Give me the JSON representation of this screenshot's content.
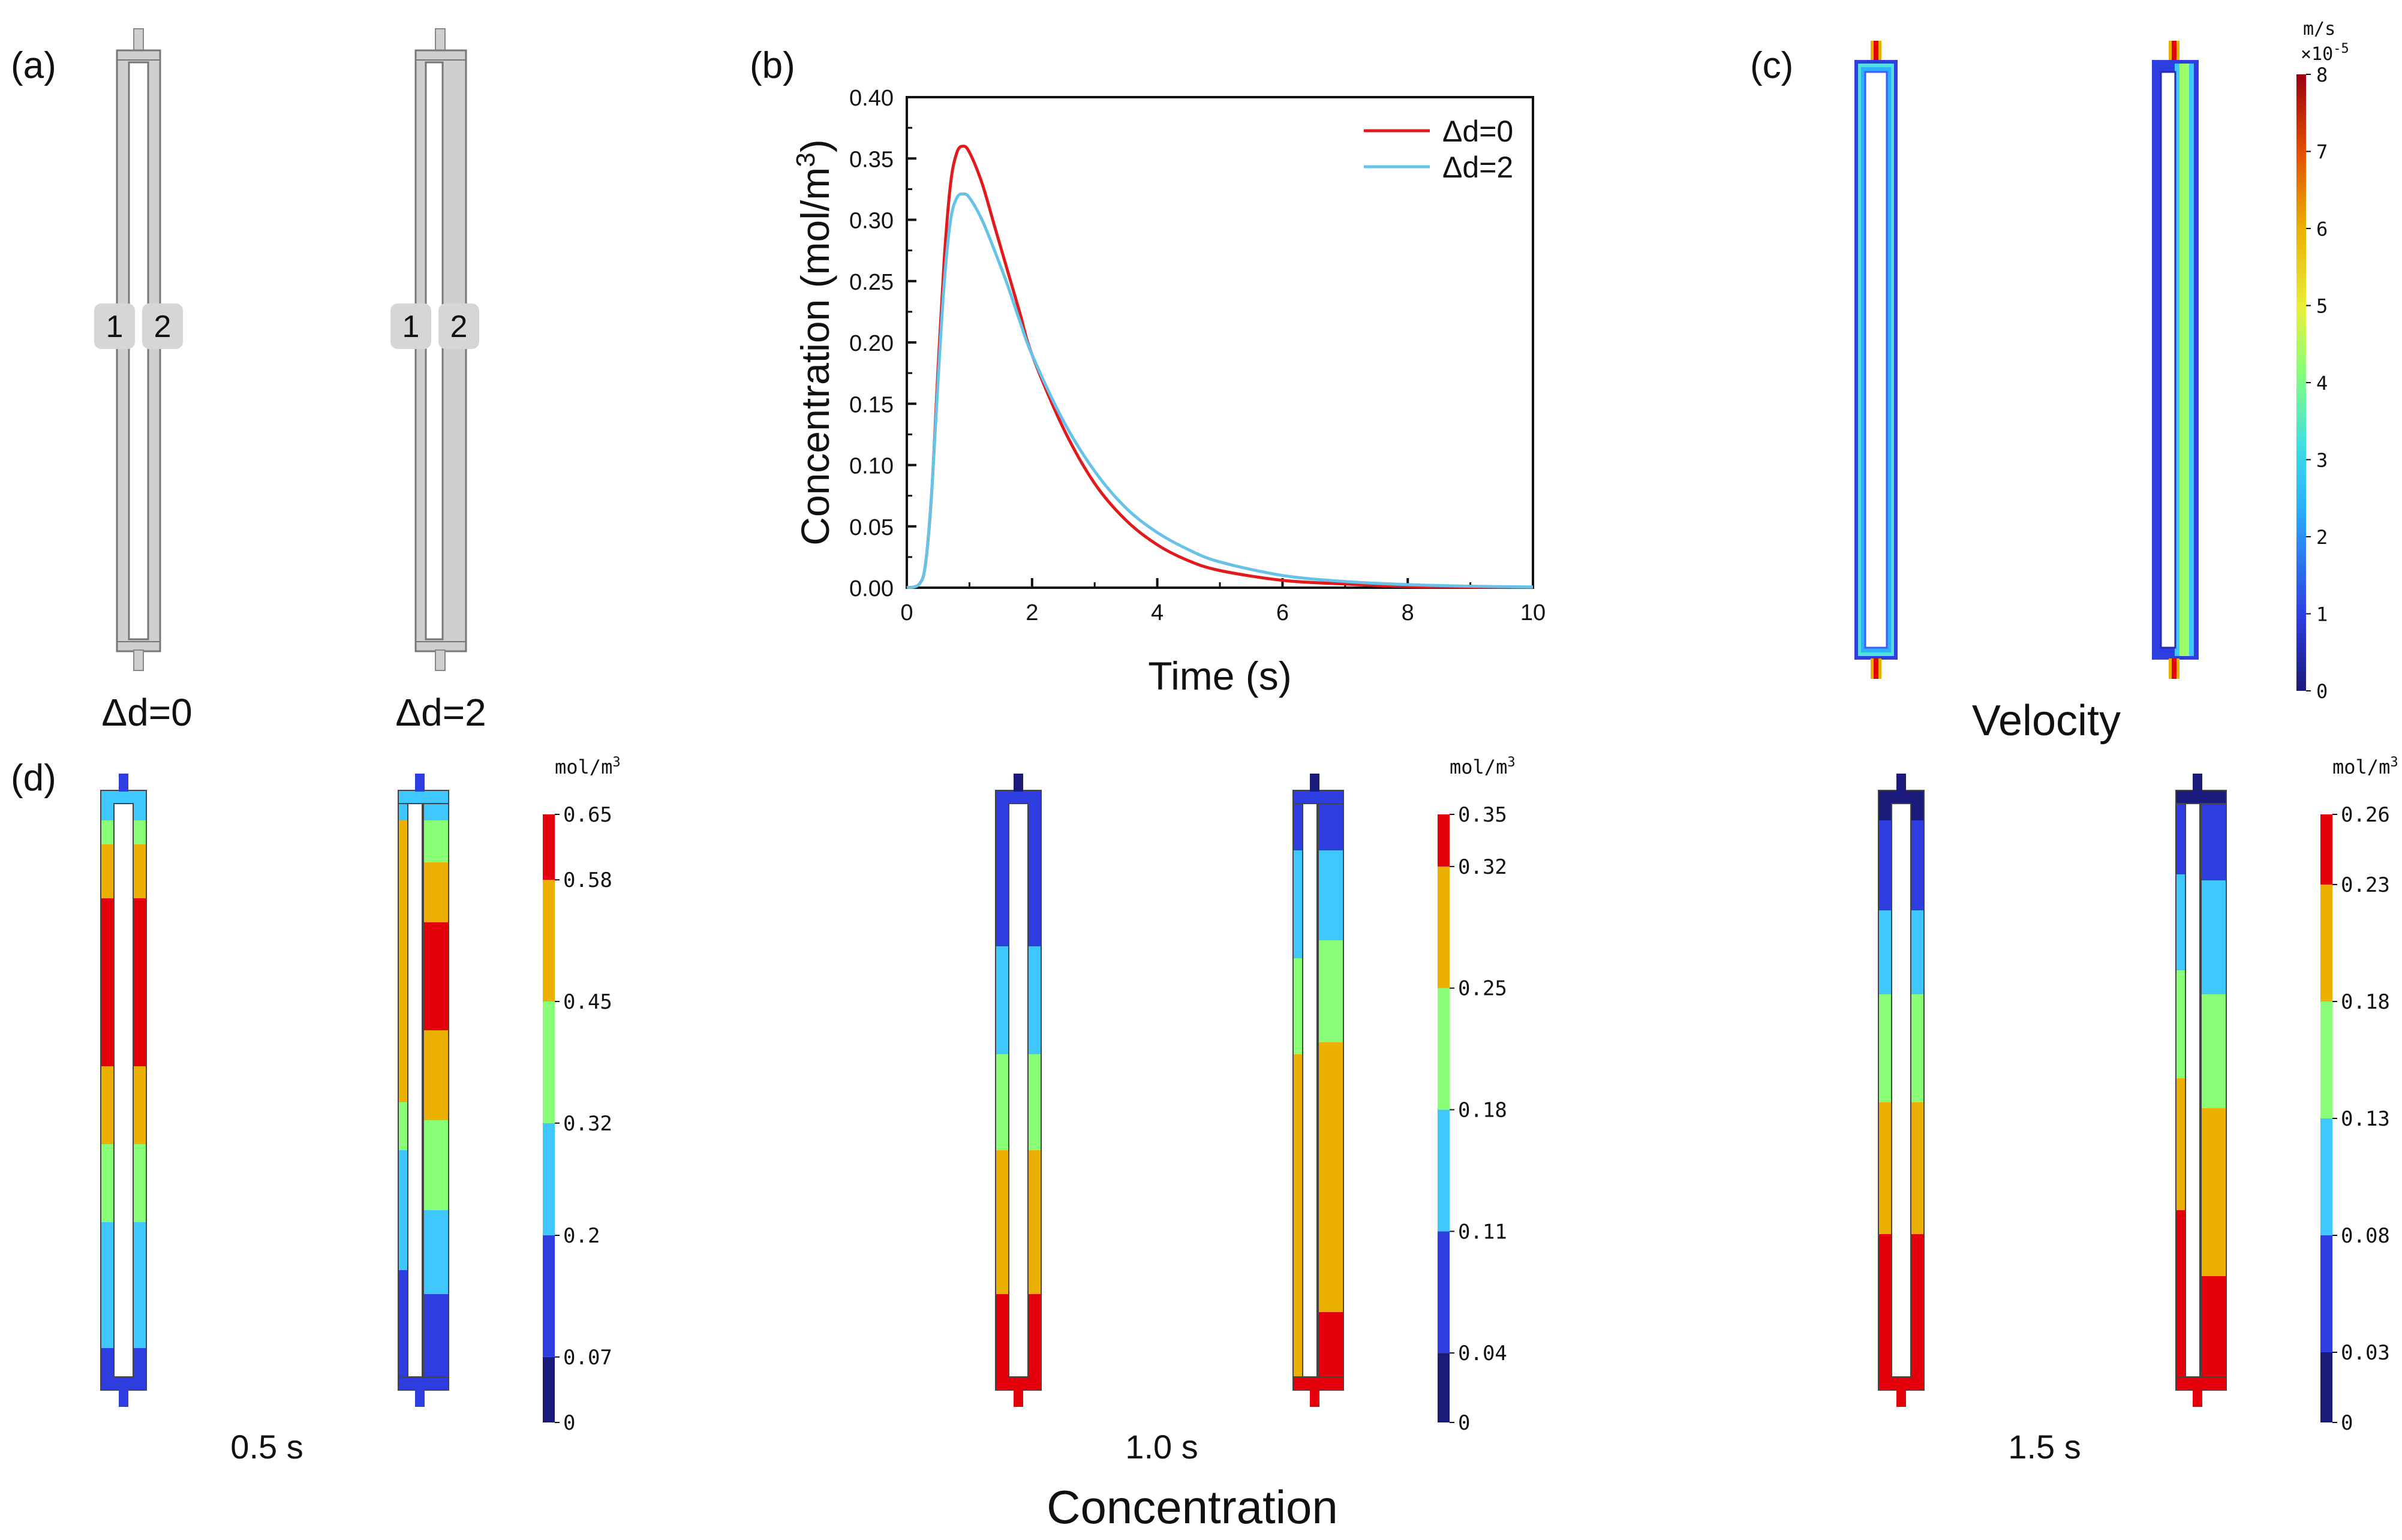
{
  "panels": {
    "a": {
      "label": "(a)",
      "captions": [
        "Δd=0",
        "Δd=2"
      ],
      "channel_labels": [
        "1",
        "2"
      ]
    },
    "b": {
      "label": "(b)"
    },
    "c": {
      "label": "(c)",
      "caption": "Velocity",
      "colorbar": {
        "unit": "m/s",
        "exponent": "×10",
        "exponent_sup": "-5",
        "ticks": [
          "0",
          "1",
          "2",
          "3",
          "4",
          "5",
          "6",
          "7",
          "8"
        ]
      }
    },
    "d": {
      "label": "(d)",
      "caption": "Concentration",
      "unit": "mol/m",
      "unit_sup": "3",
      "snapshots": [
        {
          "time": "0.5 s",
          "ticks": [
            "0",
            "0.07",
            "0.2",
            "0.32",
            "0.45",
            "0.58",
            "0.65"
          ]
        },
        {
          "time": "1.0 s",
          "ticks": [
            "0",
            "0.04",
            "0.11",
            "0.18",
            "0.25",
            "0.32",
            "0.35"
          ]
        },
        {
          "time": "1.5 s",
          "ticks": [
            "0",
            "0.03",
            "0.08",
            "0.13",
            "0.18",
            "0.23",
            "0.26"
          ]
        }
      ]
    }
  },
  "colors": {
    "red": "#e3000b",
    "orange": "#ebb000",
    "green": "#88ff77",
    "cyan": "#3fc7ff",
    "blue": "#2e3de0",
    "navy": "#1a1a7a",
    "series_red": "#e31a1c",
    "series_cyan": "#66c2e6",
    "grey": "#cfcfcf"
  },
  "chart_data": {
    "type": "line",
    "title": "",
    "xlabel": "Time (s)",
    "ylabel": "Concentration (mol/m",
    "ylabel_sup": "3",
    "ylabel_end": ")",
    "xlim": [
      0,
      10
    ],
    "ylim": [
      0,
      0.4
    ],
    "xticks": [
      "0",
      "2",
      "4",
      "6",
      "8",
      "10"
    ],
    "yticks": [
      "0.00",
      "0.05",
      "0.10",
      "0.15",
      "0.20",
      "0.25",
      "0.30",
      "0.35",
      "0.40"
    ],
    "legend_position": "top-right",
    "series": [
      {
        "name": "Δd=0",
        "color": "#e31a1c",
        "x": [
          0,
          0.2,
          0.3,
          0.4,
          0.5,
          0.6,
          0.7,
          0.8,
          0.9,
          1.0,
          1.2,
          1.4,
          1.6,
          1.8,
          2.0,
          2.5,
          3.0,
          3.5,
          4.0,
          4.5,
          5.0,
          6.0,
          7.0,
          8.0,
          9.0,
          10.0
        ],
        "y": [
          0,
          0.003,
          0.02,
          0.08,
          0.18,
          0.27,
          0.33,
          0.355,
          0.36,
          0.355,
          0.33,
          0.295,
          0.26,
          0.225,
          0.19,
          0.13,
          0.085,
          0.055,
          0.035,
          0.022,
          0.014,
          0.006,
          0.003,
          0.001,
          0.0005,
          0.0002
        ]
      },
      {
        "name": "Δd=2",
        "color": "#66c2e6",
        "x": [
          0,
          0.2,
          0.3,
          0.4,
          0.5,
          0.6,
          0.7,
          0.8,
          0.9,
          1.0,
          1.2,
          1.4,
          1.6,
          1.8,
          2.0,
          2.5,
          3.0,
          3.5,
          4.0,
          4.5,
          5.0,
          6.0,
          7.0,
          8.0,
          9.0,
          10.0
        ],
        "y": [
          0,
          0.003,
          0.02,
          0.08,
          0.17,
          0.25,
          0.3,
          0.318,
          0.321,
          0.318,
          0.3,
          0.275,
          0.248,
          0.218,
          0.19,
          0.136,
          0.095,
          0.065,
          0.045,
          0.031,
          0.021,
          0.01,
          0.005,
          0.0025,
          0.0012,
          0.0006
        ]
      }
    ]
  }
}
